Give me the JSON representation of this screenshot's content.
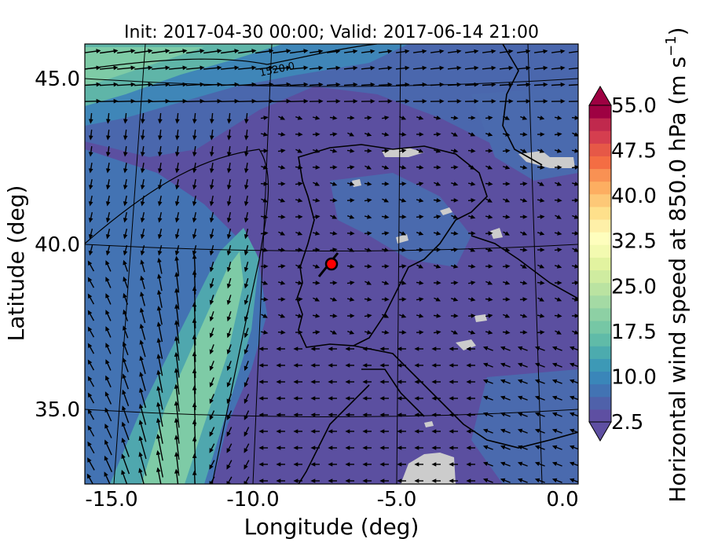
{
  "figure": {
    "title": "Init: 2017-04-30 00:00; Valid: 2017-06-14 21:00",
    "xlabel": "Longitude (deg)",
    "ylabel": "Latitude (deg)",
    "contour_label": "1520.0"
  },
  "axes": {
    "x_ticks": [
      "-15.0",
      "-10.0",
      "-5.0",
      "0.0"
    ],
    "y_ticks": [
      "45.0",
      "40.0",
      "35.0"
    ],
    "xlim": [
      -16,
      0
    ],
    "ylim": [
      32.7,
      45.9
    ]
  },
  "colorbar": {
    "label_main": "Horizontal wind speed at 850.0 hPa (m s",
    "label_sup": "−1",
    "label_close": ")",
    "ticks": [
      "55.0",
      "47.5",
      "40.0",
      "32.5",
      "25.0",
      "17.5",
      "10.0",
      "2.5"
    ],
    "min": 2.5,
    "max": 55.0,
    "extend": "both",
    "colors": [
      "#5e4fa2",
      "#4f61aa",
      "#4273b3",
      "#3a86b9",
      "#3d99b6",
      "#4cabae",
      "#60bba8",
      "#76c7a5",
      "#8dd0a4",
      "#a4daa4",
      "#bae3a1",
      "#cfeca0",
      "#e2f3a0",
      "#f3fab0",
      "#fefebd",
      "#fef0a8",
      "#fee08b",
      "#fdc877",
      "#fdae61",
      "#f99153",
      "#f46d43",
      "#e65847",
      "#d53e4f",
      "#c0294d",
      "#9e0142"
    ]
  },
  "chart_data": {
    "type": "heatmap",
    "field": "Horizontal wind speed at 850.0 hPa",
    "units": "m s-1",
    "overlays": [
      "wind vectors",
      "coastlines",
      "geopotential contour 1520.0",
      "marker point"
    ],
    "marker": {
      "lon": -7.6,
      "lat": 39.4,
      "color": "#ff0000"
    },
    "background_level": 5.0,
    "jet_max_level": 17.5
  }
}
